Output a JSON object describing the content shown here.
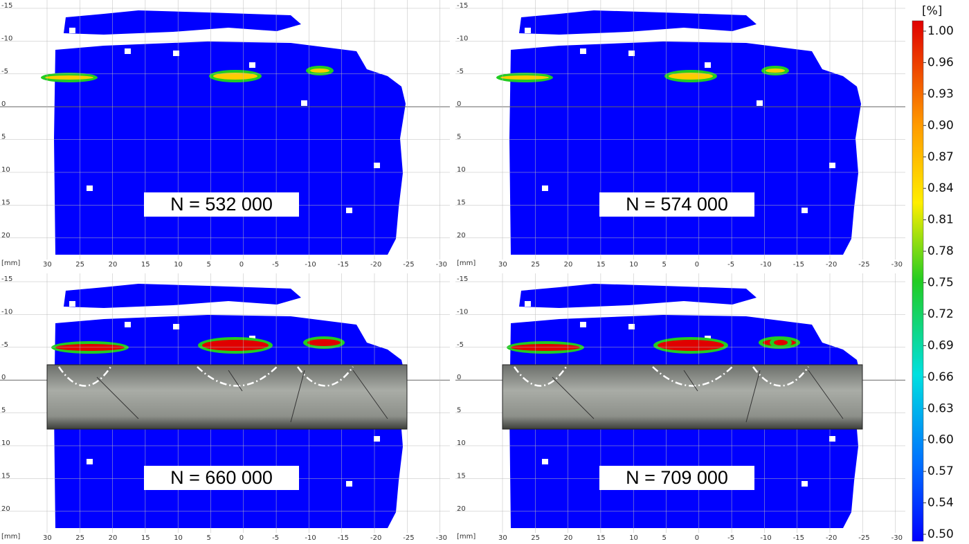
{
  "panels": [
    {
      "label": "N = 532 000"
    },
    {
      "label": "N = 574 000"
    },
    {
      "label": "N = 660 000"
    },
    {
      "label": "N = 709 000"
    }
  ],
  "axis": {
    "unit": "[mm]",
    "yticks": [
      -15,
      -10,
      -5,
      0,
      5,
      10,
      15,
      20
    ],
    "xticks": [
      30,
      25,
      20,
      15,
      10,
      5,
      0,
      -5,
      -10,
      -15,
      -20,
      -25,
      -30
    ]
  },
  "colorbar": {
    "unit": "[%]",
    "ticks": [
      "1.00",
      "0.96",
      "0.93",
      "0.90",
      "0.87",
      "0.84",
      "0.81",
      "0.78",
      "0.75",
      "0.72",
      "0.69",
      "0.66",
      "0.63",
      "0.60",
      "0.57",
      "0.54",
      "0.50"
    ]
  }
}
